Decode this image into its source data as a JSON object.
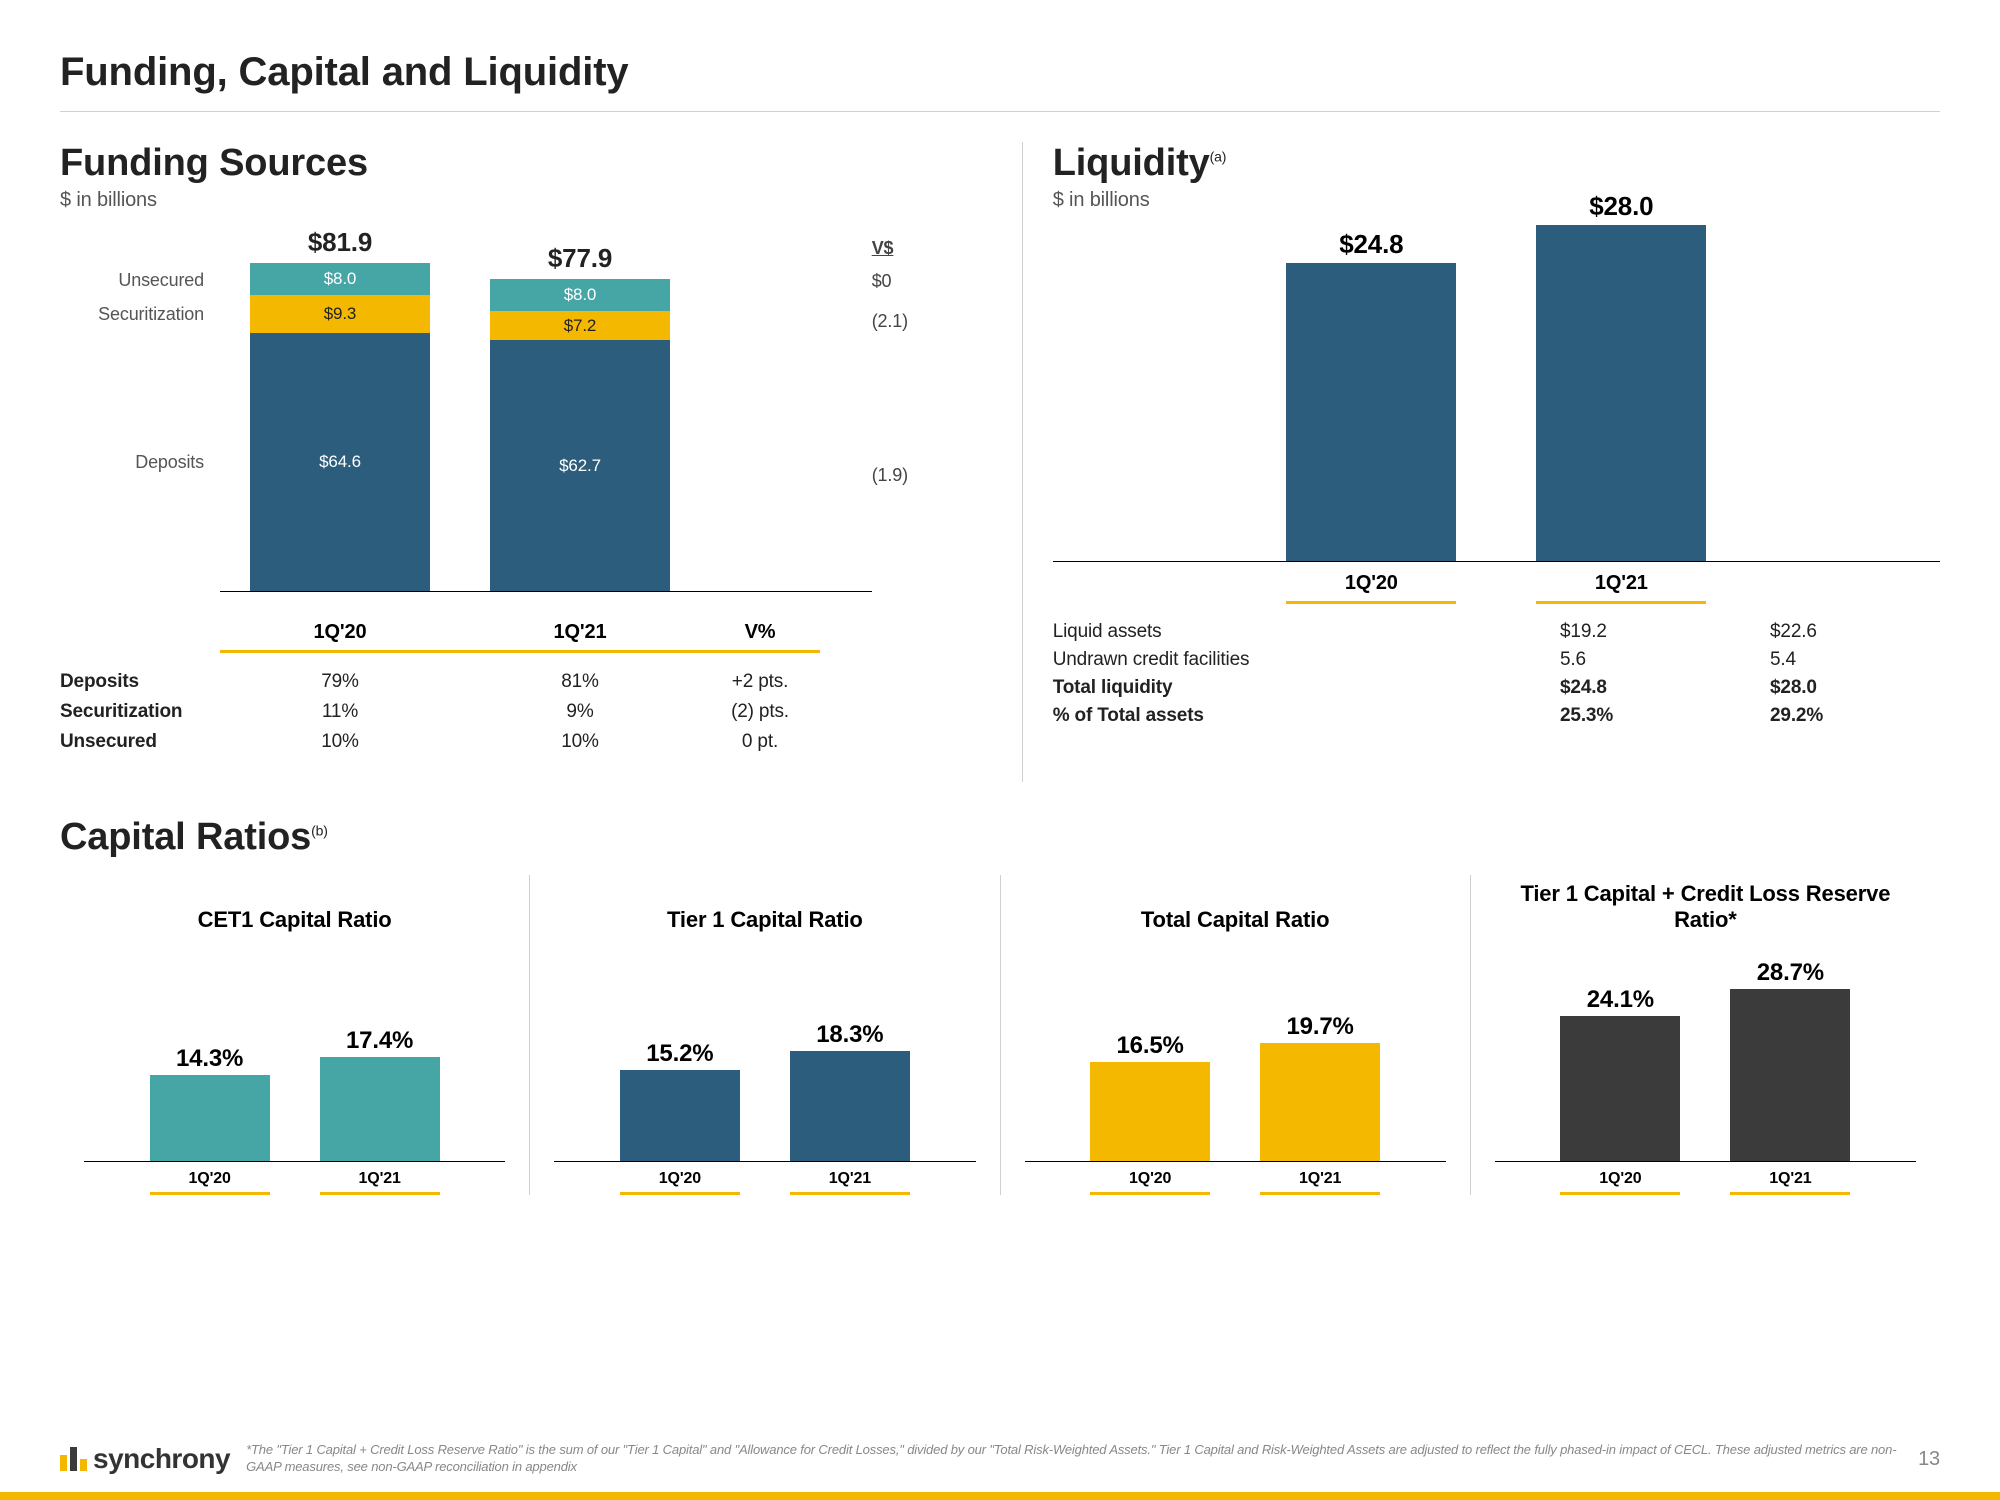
{
  "colors": {
    "navy": "#2d5d7c",
    "teal": "#46a6a6",
    "gold": "#f5b800",
    "charcoal": "#3b3b3b"
  },
  "page_title": "Funding, Capital and Liquidity",
  "funding": {
    "title": "Funding Sources",
    "unit": "$ in billions",
    "ymax": 90,
    "stack_labels": [
      "Unsecured",
      "Securitization",
      "Deposits"
    ],
    "stack_colors": [
      "#46a6a6",
      "#f5b800",
      "#2d5d7c"
    ],
    "periods": [
      "1Q'20",
      "1Q'21"
    ],
    "bars": [
      {
        "total": "$81.9",
        "segs": [
          "$8.0",
          "$9.3",
          "$64.6"
        ],
        "vals": [
          8.0,
          9.3,
          64.6
        ]
      },
      {
        "total": "$77.9",
        "segs": [
          "$8.0",
          "$7.2",
          "$62.7"
        ],
        "vals": [
          8.0,
          7.2,
          62.7
        ]
      }
    ],
    "delta_head": "V$",
    "delta": [
      "$0",
      "(2.1)",
      "(1.9)"
    ],
    "vcol_head": "V%",
    "table": [
      {
        "label": "Deposits",
        "c1": "79%",
        "c2": "81%",
        "v": "+2 pts."
      },
      {
        "label": "Securitization",
        "c1": "11%",
        "c2": "9%",
        "v": "(2) pts."
      },
      {
        "label": "Unsecured",
        "c1": "10%",
        "c2": "10%",
        "v": "0 pt."
      }
    ]
  },
  "liquidity": {
    "title": "Liquidity",
    "sup": "(a)",
    "unit": "$ in billions",
    "ymax": 30,
    "periods": [
      "1Q'20",
      "1Q'21"
    ],
    "bars": [
      {
        "label": "$24.8",
        "val": 24.8
      },
      {
        "label": "$28.0",
        "val": 28.0
      }
    ],
    "table": [
      {
        "label": "Liquid assets",
        "c1": "$19.2",
        "c2": "$22.6",
        "bold": false
      },
      {
        "label": "Undrawn credit facilities",
        "c1": "5.6",
        "c2": "5.4",
        "bold": false
      },
      {
        "label": "Total liquidity",
        "c1": "$24.8",
        "c2": "$28.0",
        "bold": true
      },
      {
        "label": "% of Total assets",
        "c1": "25.3%",
        "c2": "29.2%",
        "bold": true
      }
    ]
  },
  "capital": {
    "title": "Capital Ratios",
    "sup": "(b)",
    "ymax": 30,
    "periods": [
      "1Q'20",
      "1Q'21"
    ],
    "cells": [
      {
        "name": "CET1 Capital Ratio",
        "color": "#46a6a6",
        "vals": [
          14.3,
          17.4
        ],
        "labels": [
          "14.3%",
          "17.4%"
        ]
      },
      {
        "name": "Tier 1 Capital Ratio",
        "color": "#2d5d7c",
        "vals": [
          15.2,
          18.3
        ],
        "labels": [
          "15.2%",
          "18.3%"
        ]
      },
      {
        "name": "Total Capital Ratio",
        "color": "#f5b800",
        "vals": [
          16.5,
          19.7
        ],
        "labels": [
          "16.5%",
          "19.7%"
        ]
      },
      {
        "name": "Tier 1 Capital + Credit Loss Reserve Ratio*",
        "color": "#3b3b3b",
        "vals": [
          24.1,
          28.7
        ],
        "labels": [
          "24.1%",
          "28.7%"
        ]
      }
    ]
  },
  "footer": {
    "brand": "synchrony",
    "note": "*The \"Tier 1 Capital + Credit Loss Reserve Ratio\" is the sum of our \"Tier 1 Capital\" and \"Allowance for Credit Losses,\" divided by our \"Total Risk-Weighted Assets.\" Tier 1 Capital and Risk-Weighted Assets are adjusted to reflect the fully phased-in impact of CECL. These adjusted metrics are non-GAAP measures, see non-GAAP reconciliation in appendix",
    "page": "13"
  }
}
